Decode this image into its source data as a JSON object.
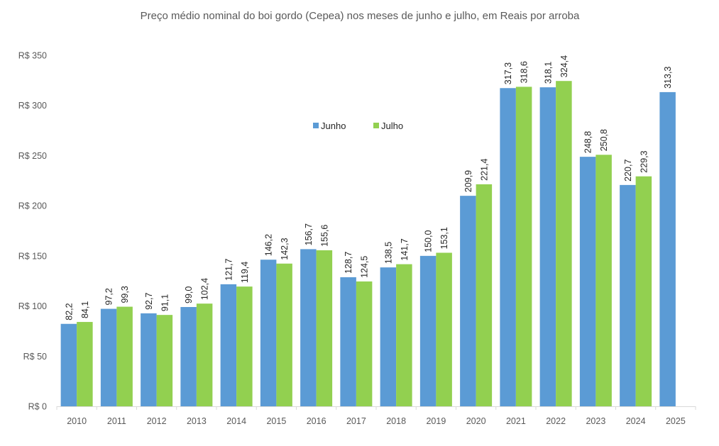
{
  "chart_data": {
    "type": "bar",
    "title": "Preço médio nominal do boi gordo (Cepea) nos meses de junho e julho, em Reais por arroba",
    "xlabel": "",
    "ylabel": "",
    "categories": [
      "2010",
      "2011",
      "2012",
      "2013",
      "2014",
      "2015",
      "2016",
      "2017",
      "2018",
      "2019",
      "2020",
      "2021",
      "2022",
      "2023",
      "2024",
      "2025"
    ],
    "series": [
      {
        "name": "Junho",
        "color": "#5b9bd5",
        "values": [
          82.2,
          97.2,
          92.7,
          99.0,
          121.7,
          146.2,
          156.7,
          128.7,
          138.5,
          150.0,
          209.9,
          317.3,
          318.1,
          248.8,
          220.7,
          313.3
        ],
        "labels": [
          "82,2",
          "97,2",
          "92,7",
          "99,0",
          "121,7",
          "146,2",
          "156,7",
          "128,7",
          "138,5",
          "150,0",
          "209,9",
          "317,3",
          "318,1",
          "248,8",
          "220,7",
          "313,3"
        ]
      },
      {
        "name": "Julho",
        "color": "#92d050",
        "values": [
          84.1,
          99.3,
          91.1,
          102.4,
          119.4,
          142.3,
          155.6,
          124.5,
          141.7,
          153.1,
          221.4,
          318.6,
          324.4,
          250.8,
          229.3,
          null
        ],
        "labels": [
          "84,1",
          "99,3",
          "91,1",
          "102,4",
          "119,4",
          "142,3",
          "155,6",
          "124,5",
          "141,7",
          "153,1",
          "221,4",
          "318,6",
          "324,4",
          "250,8",
          "229,3",
          null
        ]
      }
    ],
    "ylim": [
      0,
      350
    ],
    "yticks": [
      0,
      50,
      100,
      150,
      200,
      250,
      300,
      350
    ],
    "ytick_labels": [
      "R$ 0",
      "R$ 50",
      "R$ 100",
      "R$ 150",
      "R$ 200",
      "R$ 250",
      "R$ 300",
      "R$ 350"
    ],
    "grid": false,
    "legend_position": "top-center",
    "data_labels": "rotated-vertical"
  }
}
